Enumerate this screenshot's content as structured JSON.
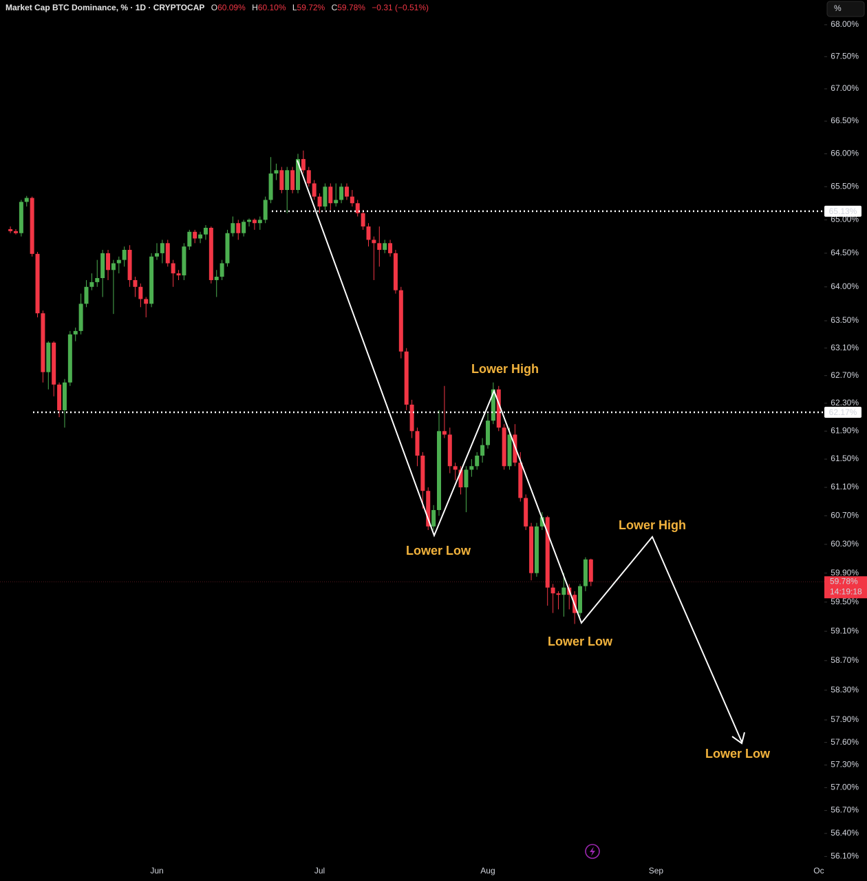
{
  "chart_data": {
    "type": "candlestick",
    "title": "Market Cap BTC Dominance, % · 1D · CRYPTOCAP",
    "ohlc_header": [
      {
        "key": "O",
        "value": "60.09%"
      },
      {
        "key": "H",
        "value": "60.10%"
      },
      {
        "key": "L",
        "value": "59.72%"
      },
      {
        "key": "C",
        "value": "59.78%"
      }
    ],
    "change": "−0.31 (−0.51%)",
    "y_unit": "%",
    "log": true,
    "up_color": "#4caf50",
    "down_color": "#f23645",
    "categories": [
      null,
      null,
      null,
      null,
      null,
      null,
      null,
      null,
      null,
      null,
      null,
      null,
      null,
      null,
      null,
      null,
      null,
      null,
      null,
      null,
      null,
      null,
      null,
      null,
      null,
      null,
      null,
      "Jun",
      null,
      null,
      null,
      null,
      null,
      null,
      null,
      null,
      null,
      null,
      null,
      null,
      null,
      null,
      null,
      null,
      null,
      null,
      null,
      null,
      null,
      null,
      null,
      null,
      null,
      null,
      null,
      null,
      null,
      "Jul",
      null,
      null,
      null,
      null,
      null,
      null,
      null,
      null,
      null,
      null,
      null,
      null,
      null,
      null,
      null,
      null,
      null,
      null,
      null,
      null,
      null,
      null,
      null,
      null,
      null,
      null,
      null,
      null,
      null,
      null,
      "Aug",
      null,
      null,
      null,
      null,
      null,
      null,
      null,
      null,
      null,
      null,
      null,
      null,
      null,
      null,
      null,
      null,
      null,
      null,
      null,
      null,
      null,
      null,
      null,
      null,
      null,
      null,
      null,
      null,
      null,
      null,
      "Sep",
      null,
      null,
      null,
      null,
      null,
      null,
      null,
      null,
      null,
      null,
      null,
      null,
      null,
      null,
      null,
      null,
      null,
      null,
      null,
      null,
      null,
      null,
      null,
      null,
      null,
      null,
      null,
      null,
      null,
      "Oc"
    ],
    "open": [
      64.86,
      64.83,
      64.8,
      65.27,
      65.33,
      64.49,
      63.61,
      62.75,
      63.18,
      62.57,
      62.2,
      62.6,
      63.3,
      63.35,
      63.75,
      64.0,
      64.07,
      64.13,
      64.5,
      64.25,
      64.35,
      64.4,
      64.55,
      64.1,
      64.0,
      63.82,
      63.75,
      64.45,
      64.5,
      64.65,
      64.35,
      64.2,
      64.17,
      64.6,
      64.82,
      64.72,
      64.78,
      64.88,
      64.1,
      64.15,
      64.35,
      64.8,
      64.95,
      64.8,
      64.97,
      65.0,
      64.95,
      65.0,
      65.3,
      65.7,
      65.75,
      65.45,
      65.75,
      65.45,
      65.92,
      65.75,
      65.55,
      65.35,
      65.2,
      65.5,
      65.25,
      65.3,
      65.5,
      65.35,
      65.25,
      65.1,
      64.9,
      64.7,
      64.65,
      64.55,
      64.65,
      64.5,
      63.95,
      63.05,
      62.28,
      61.9,
      61.55,
      61.05,
      60.55,
      60.78,
      61.9,
      61.85,
      61.4,
      61.35,
      61.1,
      61.35,
      61.4,
      61.55,
      61.7,
      62.05,
      62.5,
      61.95,
      61.4,
      61.85,
      61.45,
      60.95,
      60.55,
      59.9,
      60.55,
      60.68,
      59.7,
      59.62,
      59.6,
      59.7,
      59.6,
      59.35,
      59.72,
      60.09,
      null,
      null,
      null,
      null,
      null,
      null,
      null,
      null,
      null,
      null,
      null,
      null,
      null,
      null,
      null,
      null,
      null,
      null,
      null,
      null,
      null,
      null,
      null,
      null,
      null,
      null,
      null,
      null,
      null,
      null,
      null,
      null,
      null,
      null,
      null,
      null,
      null,
      null,
      null,
      null,
      null,
      null
    ],
    "high": [
      64.9,
      64.86,
      65.3,
      65.36,
      65.35,
      64.52,
      63.65,
      63.2,
      63.2,
      62.6,
      62.65,
      63.35,
      63.4,
      63.9,
      64.1,
      64.2,
      64.4,
      64.55,
      64.55,
      64.4,
      64.45,
      64.6,
      64.62,
      64.15,
      64.05,
      63.85,
      64.5,
      64.65,
      64.7,
      64.7,
      64.4,
      64.25,
      64.65,
      64.85,
      64.85,
      64.82,
      64.92,
      64.9,
      64.25,
      64.4,
      64.85,
      65.05,
      65.0,
      65.0,
      65.02,
      65.02,
      65.05,
      65.35,
      65.95,
      65.85,
      65.8,
      65.8,
      65.8,
      66.0,
      66.05,
      65.8,
      65.6,
      65.4,
      65.55,
      65.55,
      65.55,
      65.55,
      65.55,
      65.45,
      65.3,
      65.15,
      64.95,
      64.75,
      64.9,
      64.7,
      64.7,
      64.55,
      64.0,
      63.1,
      62.35,
      61.95,
      61.6,
      61.1,
      60.85,
      62.2,
      62.55,
      61.95,
      61.45,
      61.4,
      61.4,
      61.5,
      61.6,
      61.8,
      62.15,
      62.6,
      62.55,
      62.0,
      61.95,
      62.0,
      61.6,
      61.0,
      60.6,
      60.6,
      60.75,
      60.7,
      59.75,
      59.65,
      59.9,
      59.75,
      59.65,
      59.75,
      60.12,
      60.1,
      null,
      null,
      null,
      null,
      null,
      null,
      null,
      null,
      null,
      null,
      null,
      null,
      null,
      null,
      null,
      null,
      null,
      null,
      null,
      null,
      null,
      null,
      null,
      null,
      null,
      null,
      null,
      null,
      null,
      null,
      null,
      null,
      null,
      null,
      null,
      null,
      null,
      null,
      null,
      null,
      null,
      null
    ],
    "low": [
      64.8,
      64.78,
      64.75,
      65.2,
      64.45,
      63.55,
      62.6,
      62.5,
      62.4,
      62.1,
      61.95,
      62.55,
      63.2,
      63.3,
      63.7,
      63.95,
      64.0,
      63.85,
      64.1,
      63.6,
      64.2,
      64.3,
      64.0,
      63.85,
      63.7,
      63.55,
      63.7,
      64.4,
      64.35,
      64.3,
      64.0,
      64.1,
      64.1,
      64.55,
      64.65,
      64.65,
      64.7,
      64.05,
      63.85,
      64.1,
      64.3,
      64.75,
      64.7,
      64.75,
      64.9,
      64.85,
      64.85,
      64.95,
      65.25,
      65.6,
      65.4,
      65.1,
      65.4,
      65.4,
      65.7,
      65.5,
      65.3,
      65.1,
      65.15,
      65.15,
      65.2,
      65.25,
      65.3,
      65.2,
      65.05,
      64.85,
      64.6,
      64.1,
      64.3,
      64.5,
      64.45,
      63.9,
      62.95,
      62.2,
      61.8,
      61.4,
      60.8,
      60.5,
      60.5,
      60.7,
      61.8,
      61.3,
      61.2,
      61.0,
      60.75,
      61.25,
      61.35,
      61.45,
      61.65,
      62.0,
      61.9,
      61.35,
      61.35,
      61.4,
      60.9,
      60.5,
      59.8,
      59.85,
      60.5,
      59.45,
      59.35,
      59.4,
      59.3,
      59.4,
      59.2,
      59.3,
      59.65,
      59.72,
      null,
      null,
      null,
      null,
      null,
      null,
      null,
      null,
      null,
      null,
      null,
      null,
      null,
      null,
      null,
      null,
      null,
      null,
      null,
      null,
      null,
      null,
      null,
      null,
      null,
      null,
      null,
      null,
      null,
      null,
      null,
      null,
      null,
      null,
      null,
      null,
      null,
      null,
      null,
      null,
      null,
      null
    ],
    "close": [
      64.83,
      64.8,
      65.27,
      65.33,
      64.49,
      63.61,
      62.75,
      63.18,
      62.57,
      62.2,
      62.6,
      63.3,
      63.35,
      63.75,
      64.0,
      64.07,
      64.13,
      64.5,
      64.25,
      64.35,
      64.4,
      64.55,
      64.1,
      64.0,
      63.82,
      63.75,
      64.45,
      64.5,
      64.65,
      64.35,
      64.2,
      64.17,
      64.6,
      64.82,
      64.72,
      64.78,
      64.88,
      64.1,
      64.15,
      64.35,
      64.8,
      64.95,
      64.8,
      64.97,
      65.0,
      64.95,
      65.0,
      65.3,
      65.7,
      65.75,
      65.45,
      65.75,
      65.45,
      65.92,
      65.75,
      65.55,
      65.35,
      65.2,
      65.5,
      65.25,
      65.3,
      65.5,
      65.35,
      65.25,
      65.1,
      64.9,
      64.7,
      64.65,
      64.55,
      64.65,
      64.5,
      63.95,
      63.05,
      62.28,
      61.9,
      61.55,
      61.05,
      60.55,
      60.78,
      61.9,
      61.85,
      61.4,
      61.35,
      61.1,
      61.35,
      61.4,
      61.55,
      61.7,
      62.05,
      62.5,
      61.95,
      61.4,
      61.85,
      61.45,
      60.95,
      60.55,
      59.9,
      60.55,
      60.68,
      59.7,
      59.62,
      59.6,
      59.7,
      59.6,
      59.35,
      59.72,
      60.09,
      59.78,
      null,
      null,
      null,
      null,
      null,
      null,
      null,
      null,
      null,
      null,
      null,
      null,
      null,
      null,
      null,
      null,
      null,
      null,
      null,
      null,
      null,
      null,
      null,
      null,
      null,
      null,
      null,
      null,
      null,
      null,
      null,
      null,
      null,
      null,
      null,
      null,
      null,
      null,
      null,
      null,
      null,
      null
    ],
    "ylim": [
      56.05,
      68.39
    ],
    "yticks": [
      {
        "value": 68,
        "label": "68.00%"
      },
      {
        "value": 67.5,
        "label": "67.50%"
      },
      {
        "value": 67,
        "label": "67.00%"
      },
      {
        "value": 66.5,
        "label": "66.50%"
      },
      {
        "value": 66,
        "label": "66.00%"
      },
      {
        "value": 65.5,
        "label": "65.50%"
      },
      {
        "value": 65,
        "label": "65.00%"
      },
      {
        "value": 64.5,
        "label": "64.50%"
      },
      {
        "value": 64,
        "label": "64.00%"
      },
      {
        "value": 63.5,
        "label": "63.50%"
      },
      {
        "value": 63.1,
        "label": "63.10%"
      },
      {
        "value": 62.7,
        "label": "62.70%"
      },
      {
        "value": 62.3,
        "label": "62.30%"
      },
      {
        "value": 61.9,
        "label": "61.90%"
      },
      {
        "value": 61.5,
        "label": "61.50%"
      },
      {
        "value": 61.1,
        "label": "61.10%"
      },
      {
        "value": 60.7,
        "label": "60.70%"
      },
      {
        "value": 60.3,
        "label": "60.30%"
      },
      {
        "value": 59.9,
        "label": "59.90%"
      },
      {
        "value": 59.5,
        "label": "59.50%"
      },
      {
        "value": 59.1,
        "label": "59.10%"
      },
      {
        "value": 58.7,
        "label": "58.70%"
      },
      {
        "value": 58.3,
        "label": "58.30%"
      },
      {
        "value": 57.9,
        "label": "57.90%"
      },
      {
        "value": 57.6,
        "label": "57.60%"
      },
      {
        "value": 57.3,
        "label": "57.30%"
      },
      {
        "value": 57,
        "label": "57.00%"
      },
      {
        "value": 56.7,
        "label": "56.70%"
      },
      {
        "value": 56.4,
        "label": "56.40%"
      },
      {
        "value": 56.1,
        "label": "56.10%"
      }
    ],
    "levels": [
      {
        "value": 65.13,
        "label": "65.13%"
      },
      {
        "value": 62.17,
        "label": "62.17%"
      }
    ],
    "last_price": {
      "value": 59.78,
      "label": "59.78%",
      "countdown": "14:19:18"
    },
    "annotations": [
      "Lower High",
      "Lower Low",
      "Lower High",
      "Lower Low",
      "Lower Low"
    ]
  }
}
